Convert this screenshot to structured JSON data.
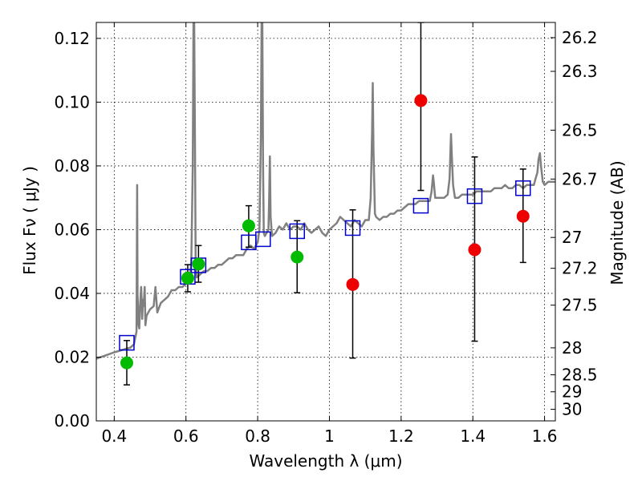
{
  "chart_data": {
    "type": "scatter",
    "xlabel": "Wavelength  λ (μm)",
    "ylabel": "Flux  Fν  ( μJy )",
    "ylabel_right": "Magnitude (AB)",
    "xlim": [
      0.35,
      1.63
    ],
    "ylim": [
      0.0,
      0.125
    ],
    "grid": true,
    "x_ticks": [
      0.4,
      0.6,
      0.8,
      1.0,
      1.2,
      1.4,
      1.6
    ],
    "x_tick_labels": [
      "0.4",
      "0.6",
      "0.8",
      "1",
      "1.2",
      "1.4",
      "1.6"
    ],
    "y_ticks": [
      0.0,
      0.02,
      0.04,
      0.06,
      0.08,
      0.1,
      0.12
    ],
    "y_tick_labels": [
      "0.00",
      "0.02",
      "0.04",
      "0.06",
      "0.08",
      "0.10",
      "0.12"
    ],
    "right_ticks": [
      26.2,
      26.3,
      26.5,
      26.7,
      27,
      27.2,
      27.5,
      28,
      28.5,
      29,
      30
    ],
    "right_tick_labels": [
      "26.2",
      "26.3",
      "26.5",
      "26.7",
      "27",
      "27.2",
      "27.5",
      "28",
      "28.5",
      "29",
      "30"
    ],
    "colors": {
      "model": "#808080",
      "green": "#00bb00",
      "red": "#ee0000",
      "box": "#0000cc",
      "errorbar": "#000000"
    },
    "model_spectrum": {
      "x": [
        0.35,
        0.4,
        0.43,
        0.445,
        0.455,
        0.462,
        0.463,
        0.464,
        0.465,
        0.468,
        0.47,
        0.472,
        0.475,
        0.478,
        0.48,
        0.482,
        0.485,
        0.487,
        0.49,
        0.5,
        0.51,
        0.515,
        0.52,
        0.53,
        0.54,
        0.55,
        0.56,
        0.57,
        0.58,
        0.59,
        0.6,
        0.61,
        0.615,
        0.619,
        0.621,
        0.623,
        0.625,
        0.627,
        0.63,
        0.64,
        0.65,
        0.66,
        0.67,
        0.68,
        0.69,
        0.7,
        0.71,
        0.72,
        0.73,
        0.74,
        0.75,
        0.76,
        0.77,
        0.78,
        0.79,
        0.8,
        0.805,
        0.809,
        0.811,
        0.813,
        0.815,
        0.817,
        0.82,
        0.825,
        0.83,
        0.832,
        0.834,
        0.836,
        0.84,
        0.85,
        0.86,
        0.87,
        0.88,
        0.89,
        0.9,
        0.91,
        0.92,
        0.93,
        0.94,
        0.95,
        0.96,
        0.97,
        0.98,
        0.99,
        1.0,
        1.01,
        1.02,
        1.03,
        1.04,
        1.05,
        1.06,
        1.07,
        1.08,
        1.09,
        1.1,
        1.11,
        1.115,
        1.119,
        1.121,
        1.123,
        1.127,
        1.13,
        1.14,
        1.15,
        1.16,
        1.17,
        1.18,
        1.19,
        1.2,
        1.21,
        1.22,
        1.23,
        1.24,
        1.25,
        1.26,
        1.27,
        1.28,
        1.285,
        1.289,
        1.291,
        1.295,
        1.3,
        1.31,
        1.32,
        1.33,
        1.335,
        1.339,
        1.341,
        1.345,
        1.35,
        1.36,
        1.37,
        1.38,
        1.39,
        1.4,
        1.41,
        1.42,
        1.43,
        1.44,
        1.45,
        1.46,
        1.47,
        1.48,
        1.49,
        1.5,
        1.51,
        1.52,
        1.53,
        1.54,
        1.55,
        1.56,
        1.57,
        1.575,
        1.58,
        1.583,
        1.587,
        1.59,
        1.595,
        1.6,
        1.61,
        1.62,
        1.63
      ],
      "y": [
        0.0195,
        0.0215,
        0.0225,
        0.023,
        0.024,
        0.028,
        0.05,
        0.074,
        0.04,
        0.03,
        0.029,
        0.036,
        0.042,
        0.032,
        0.038,
        0.036,
        0.042,
        0.03,
        0.033,
        0.035,
        0.036,
        0.042,
        0.034,
        0.037,
        0.038,
        0.039,
        0.041,
        0.041,
        0.042,
        0.042,
        0.043,
        0.044,
        0.05,
        0.08,
        0.125,
        0.125,
        0.09,
        0.05,
        0.045,
        0.046,
        0.047,
        0.047,
        0.048,
        0.048,
        0.049,
        0.049,
        0.05,
        0.051,
        0.051,
        0.052,
        0.052,
        0.052,
        0.054,
        0.055,
        0.054,
        0.056,
        0.06,
        0.09,
        0.125,
        0.125,
        0.08,
        0.059,
        0.058,
        0.059,
        0.06,
        0.07,
        0.083,
        0.064,
        0.058,
        0.059,
        0.061,
        0.06,
        0.062,
        0.06,
        0.061,
        0.061,
        0.06,
        0.062,
        0.06,
        0.059,
        0.06,
        0.061,
        0.059,
        0.058,
        0.06,
        0.061,
        0.062,
        0.064,
        0.063,
        0.062,
        0.061,
        0.063,
        0.062,
        0.061,
        0.063,
        0.063,
        0.07,
        0.09,
        0.106,
        0.085,
        0.065,
        0.064,
        0.063,
        0.064,
        0.064,
        0.065,
        0.065,
        0.066,
        0.066,
        0.067,
        0.068,
        0.068,
        0.068,
        0.069,
        0.069,
        0.069,
        0.069,
        0.072,
        0.077,
        0.075,
        0.07,
        0.07,
        0.07,
        0.07,
        0.071,
        0.076,
        0.09,
        0.084,
        0.074,
        0.07,
        0.07,
        0.071,
        0.071,
        0.071,
        0.071,
        0.072,
        0.072,
        0.072,
        0.072,
        0.072,
        0.073,
        0.073,
        0.073,
        0.074,
        0.073,
        0.073,
        0.074,
        0.074,
        0.073,
        0.074,
        0.074,
        0.074,
        0.076,
        0.078,
        0.082,
        0.084,
        0.08,
        0.075,
        0.074,
        0.075,
        0.075,
        0.075
      ]
    },
    "green_points": [
      {
        "x": 0.435,
        "y": 0.0182,
        "yerr": [
          0.0113,
          0.0252
        ]
      },
      {
        "x": 0.605,
        "y": 0.0448,
        "yerr": [
          0.0405,
          0.049
        ]
      },
      {
        "x": 0.635,
        "y": 0.0492,
        "yerr": [
          0.0435,
          0.055
        ]
      },
      {
        "x": 0.775,
        "y": 0.0612,
        "yerr": [
          0.0545,
          0.0675
        ]
      },
      {
        "x": 0.91,
        "y": 0.0514,
        "yerr": [
          0.0402,
          0.0628
        ]
      }
    ],
    "red_points": [
      {
        "x": 1.065,
        "y": 0.0428,
        "yerr": [
          0.0197,
          0.0662
        ]
      },
      {
        "x": 1.255,
        "y": 0.1005,
        "yerr": [
          0.0723,
          0.125
        ]
      },
      {
        "x": 1.405,
        "y": 0.0537,
        "yerr": [
          0.025,
          0.0828
        ]
      },
      {
        "x": 1.54,
        "y": 0.0642,
        "yerr": [
          0.0497,
          0.079
        ]
      }
    ],
    "model_boxes": [
      {
        "x": 0.435,
        "y": 0.0245
      },
      {
        "x": 0.605,
        "y": 0.0452
      },
      {
        "x": 0.635,
        "y": 0.0488
      },
      {
        "x": 0.775,
        "y": 0.056
      },
      {
        "x": 0.815,
        "y": 0.057
      },
      {
        "x": 0.91,
        "y": 0.0595
      },
      {
        "x": 1.065,
        "y": 0.0605
      },
      {
        "x": 1.255,
        "y": 0.0675
      },
      {
        "x": 1.405,
        "y": 0.0705
      },
      {
        "x": 1.54,
        "y": 0.073
      }
    ]
  }
}
